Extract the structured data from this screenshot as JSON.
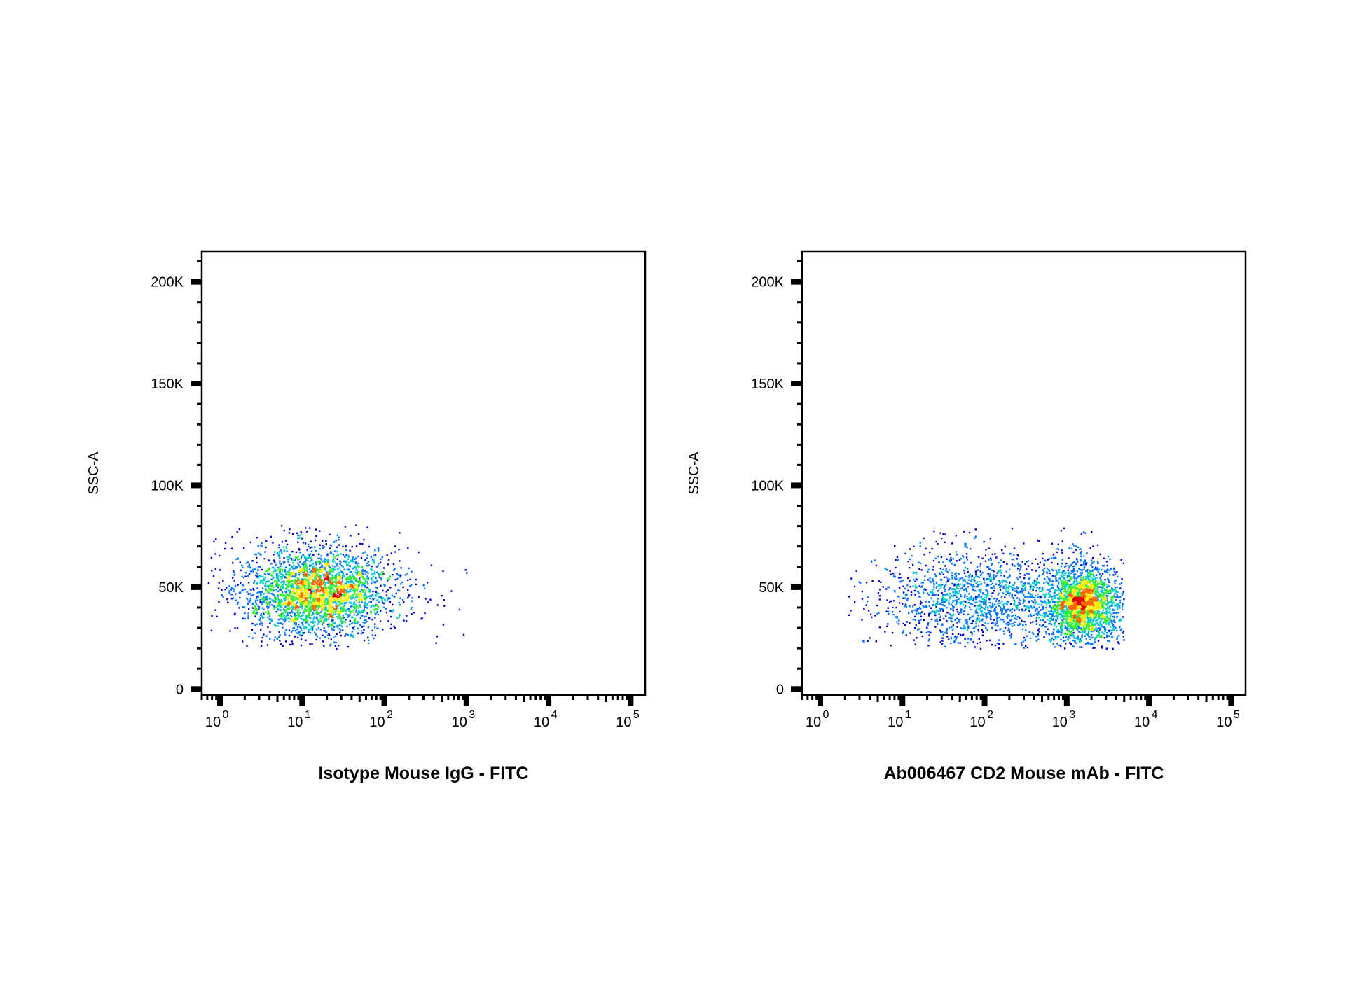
{
  "chart_data": [
    {
      "type": "scatter",
      "subtype": "flow-cytometry-density-dot-plot",
      "xlabel": "Isotype  Mouse IgG - FITC",
      "ylabel": "SSC-A",
      "xscale": "log",
      "xlim": [
        0.6,
        150000
      ],
      "ylim": [
        -3000,
        215000
      ],
      "x_ticks": [
        {
          "base": "10",
          "exp": "0",
          "value": 1
        },
        {
          "base": "10",
          "exp": "1",
          "value": 10
        },
        {
          "base": "10",
          "exp": "2",
          "value": 100
        },
        {
          "base": "10",
          "exp": "3",
          "value": 1000
        },
        {
          "base": "10",
          "exp": "4",
          "value": 10000
        },
        {
          "base": "10",
          "exp": "5",
          "value": 100000
        }
      ],
      "y_ticks": [
        {
          "label": "0",
          "value": 0
        },
        {
          "label": "50K",
          "value": 50000
        },
        {
          "label": "100K",
          "value": 100000
        },
        {
          "label": "150K",
          "value": 150000
        },
        {
          "label": "200K",
          "value": 200000
        }
      ],
      "grid": false,
      "color_scale": [
        "#0000cc",
        "#0077ff",
        "#00cccc",
        "#33ee33",
        "#ffee00",
        "#ff6600",
        "#dd0000"
      ],
      "populations": [
        {
          "x_center": 15,
          "x_spread_decades": 0.42,
          "y_center": 48000,
          "y_spread": 10000,
          "count": 3000,
          "y_range": [
            20000,
            81000
          ],
          "x_range": [
            0.65,
            1500
          ]
        }
      ]
    },
    {
      "type": "scatter",
      "subtype": "flow-cytometry-density-dot-plot",
      "xlabel": "Ab006467 CD2 Mouse mAb - FITC",
      "ylabel": "SSC-A",
      "xscale": "log",
      "xlim": [
        0.6,
        150000
      ],
      "ylim": [
        -3000,
        215000
      ],
      "x_ticks": [
        {
          "base": "10",
          "exp": "0",
          "value": 1
        },
        {
          "base": "10",
          "exp": "1",
          "value": 10
        },
        {
          "base": "10",
          "exp": "2",
          "value": 100
        },
        {
          "base": "10",
          "exp": "3",
          "value": 1000
        },
        {
          "base": "10",
          "exp": "4",
          "value": 10000
        },
        {
          "base": "10",
          "exp": "5",
          "value": 100000
        }
      ],
      "y_ticks": [
        {
          "label": "0",
          "value": 0
        },
        {
          "label": "50K",
          "value": 50000
        },
        {
          "label": "100K",
          "value": 100000
        },
        {
          "label": "150K",
          "value": 150000
        },
        {
          "label": "200K",
          "value": 200000
        }
      ],
      "grid": false,
      "color_scale": [
        "#0000cc",
        "#0077ff",
        "#00cccc",
        "#33ee33",
        "#ffee00",
        "#ff6600",
        "#dd0000"
      ],
      "populations": [
        {
          "x_center": 1500,
          "x_spread_decades": 0.22,
          "y_center": 42000,
          "y_spread": 9000,
          "count": 2300,
          "y_range": [
            20000,
            81000
          ],
          "x_range": [
            2,
            5000
          ]
        },
        {
          "x_center": 80,
          "x_spread_decades": 0.55,
          "y_center": 45000,
          "y_spread": 11000,
          "count": 1500,
          "y_range": [
            20000,
            81000
          ],
          "x_range": [
            2,
            5000
          ]
        }
      ]
    }
  ]
}
